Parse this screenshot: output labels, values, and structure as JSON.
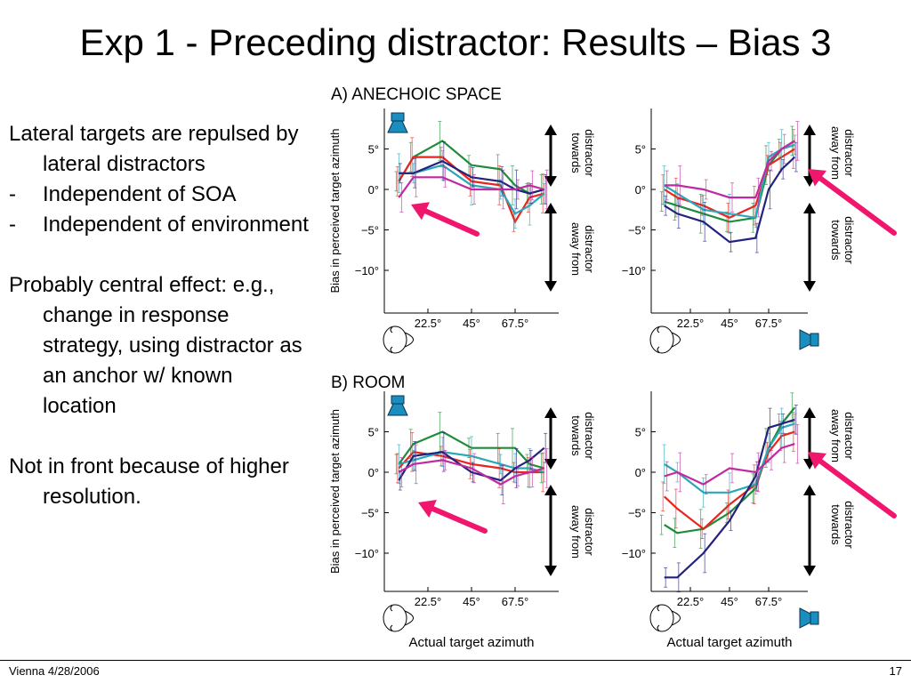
{
  "slide": {
    "title": "Exp 1 - Preceding distractor: Results – Bias 3",
    "footer_left": "Vienna 4/28/2006",
    "page_number": "17"
  },
  "bullets": {
    "b1": "Lateral targets are repulsed by lateral distractors",
    "b2_dash": "-",
    "b2": "Independent of SOA",
    "b3_dash": "-",
    "b3": "Independent of environment",
    "b4": "Probably central effect: e.g., change in response strategy, using distractor as an anchor w/ known location",
    "b5": "Not in front because of higher resolution."
  },
  "figure": {
    "panel_a_title": "A) ANECHOIC SPACE",
    "panel_b_title": "B) ROOM",
    "ylabel": "Bias in perceived target azimuth",
    "xlabel": "Actual target azimuth",
    "yticks": [
      "5°",
      "0°",
      "−5°",
      "−10°"
    ],
    "xticks": [
      "22.5°",
      "45°",
      "67.5°"
    ],
    "towards": [
      "towards",
      "distractor"
    ],
    "away": [
      "away from",
      "distractor"
    ],
    "colors": {
      "arrow": "#f0166e",
      "speaker": "#1a8fbf",
      "green": "#1e8c3a",
      "red": "#e8251f",
      "cyan": "#2aa7b8",
      "navy": "#23237e",
      "magenta": "#c02aa0"
    },
    "icons": [
      "speaker-icon",
      "head-icon",
      "double-arrow-icon",
      "highlight-arrow-icon"
    ]
  },
  "chart_data": [
    {
      "type": "line",
      "title": "A) ANECHOIC SPACE",
      "xlabel": "",
      "ylabel": "Bias in perceived target azimuth",
      "ylim": [
        -15,
        10
      ],
      "x_ticks": [
        22.5,
        45,
        67.5
      ],
      "series": [
        {
          "color": "#1e8c3a",
          "x": [
            7.5,
            15,
            30,
            45,
            60,
            67.5,
            75,
            82.5
          ],
          "y": [
            1,
            4,
            6,
            3,
            2.5,
            0.5,
            -0.5,
            0
          ]
        },
        {
          "color": "#e8251f",
          "x": [
            7.5,
            15,
            30,
            45,
            60,
            67.5,
            75,
            82.5
          ],
          "y": [
            1,
            4,
            4,
            1,
            0.5,
            -4,
            -1,
            -0.5
          ]
        },
        {
          "color": "#2aa7b8",
          "x": [
            7.5,
            15,
            30,
            45,
            60,
            67.5,
            75,
            82.5
          ],
          "y": [
            2,
            2,
            3,
            0.5,
            0,
            -3,
            -2,
            -0.5
          ]
        },
        {
          "color": "#23237e",
          "x": [
            7.5,
            15,
            30,
            45,
            60,
            67.5,
            75,
            82.5
          ],
          "y": [
            2,
            2,
            3.5,
            1.5,
            1,
            0,
            -0.5,
            0
          ]
        },
        {
          "color": "#c02aa0",
          "x": [
            7.5,
            15,
            30,
            45,
            60,
            67.5,
            75,
            82.5
          ],
          "y": [
            -1,
            1.5,
            1.5,
            0,
            0,
            0,
            0.5,
            0
          ]
        }
      ]
    },
    {
      "type": "line",
      "title": "",
      "xlabel": "",
      "ylabel": "",
      "ylim": [
        -15,
        10
      ],
      "x_ticks": [
        22.5,
        45,
        67.5
      ],
      "series": [
        {
          "color": "#1e8c3a",
          "x": [
            7.5,
            15,
            30,
            45,
            60,
            67.5,
            75,
            82.5
          ],
          "y": [
            -1.5,
            -2,
            -3,
            -4,
            -3.5,
            3,
            5,
            6
          ]
        },
        {
          "color": "#e8251f",
          "x": [
            7.5,
            15,
            30,
            45,
            60,
            67.5,
            75,
            82.5
          ],
          "y": [
            0,
            -1,
            -2,
            -3.5,
            -2,
            3,
            4,
            5
          ]
        },
        {
          "color": "#2aa7b8",
          "x": [
            7.5,
            15,
            30,
            45,
            60,
            67.5,
            75,
            82.5
          ],
          "y": [
            0.5,
            -0.5,
            -2.5,
            -3,
            -3.5,
            4,
            5,
            5.5
          ]
        },
        {
          "color": "#23237e",
          "x": [
            7.5,
            15,
            30,
            45,
            60,
            67.5,
            75,
            82.5
          ],
          "y": [
            -2,
            -3,
            -4,
            -6.5,
            -6,
            0,
            2.5,
            4
          ]
        },
        {
          "color": "#c02aa0",
          "x": [
            7.5,
            15,
            30,
            45,
            60,
            67.5,
            75,
            82.5
          ],
          "y": [
            0.5,
            0.5,
            0,
            -1,
            -1,
            3.5,
            5,
            6
          ]
        }
      ]
    },
    {
      "type": "line",
      "title": "B) ROOM",
      "xlabel": "Actual target azimuth",
      "ylabel": "Bias in perceived target azimuth",
      "ylim": [
        -15,
        10
      ],
      "x_ticks": [
        22.5,
        45,
        67.5
      ],
      "series": [
        {
          "color": "#1e8c3a",
          "x": [
            7.5,
            15,
            30,
            45,
            60,
            67.5,
            75,
            82.5
          ],
          "y": [
            1,
            3.5,
            5,
            3,
            3,
            3,
            1,
            0.5
          ]
        },
        {
          "color": "#e8251f",
          "x": [
            7.5,
            15,
            30,
            45,
            60,
            67.5,
            75,
            82.5
          ],
          "y": [
            0.5,
            2.5,
            2,
            1,
            0.5,
            0,
            0,
            0
          ]
        },
        {
          "color": "#2aa7b8",
          "x": [
            7.5,
            15,
            30,
            45,
            60,
            67.5,
            75,
            82.5
          ],
          "y": [
            1,
            1.5,
            2.5,
            2,
            1,
            0.5,
            0.5,
            0
          ]
        },
        {
          "color": "#23237e",
          "x": [
            7.5,
            15,
            30,
            45,
            60,
            67.5,
            75,
            82.5
          ],
          "y": [
            -1,
            2,
            2.5,
            0,
            -1,
            0.5,
            1.5,
            3
          ]
        },
        {
          "color": "#c02aa0",
          "x": [
            7.5,
            15,
            30,
            45,
            60,
            67.5,
            75,
            82.5
          ],
          "y": [
            0,
            1,
            1.5,
            0.5,
            -1.5,
            -0.5,
            0,
            0.5
          ]
        }
      ]
    },
    {
      "type": "line",
      "title": "",
      "xlabel": "Actual target azimuth",
      "ylabel": "",
      "ylim": [
        -15,
        10
      ],
      "x_ticks": [
        22.5,
        45,
        67.5
      ],
      "series": [
        {
          "color": "#1e8c3a",
          "x": [
            7.5,
            15,
            30,
            45,
            60,
            67.5,
            75,
            82.5
          ],
          "y": [
            -6.5,
            -7.5,
            -7,
            -5,
            -2,
            3,
            6,
            8
          ]
        },
        {
          "color": "#e8251f",
          "x": [
            7.5,
            15,
            30,
            45,
            60,
            67.5,
            75,
            82.5
          ],
          "y": [
            -3,
            -4.5,
            -7,
            -4,
            -1.5,
            2.5,
            4.5,
            5
          ]
        },
        {
          "color": "#2aa7b8",
          "x": [
            7.5,
            15,
            30,
            45,
            60,
            67.5,
            75,
            82.5
          ],
          "y": [
            1,
            0,
            -2.5,
            -2.5,
            -1.5,
            3,
            5.5,
            6
          ]
        },
        {
          "color": "#23237e",
          "x": [
            7.5,
            15,
            30,
            45,
            60,
            67.5,
            75,
            82.5
          ],
          "y": [
            -13,
            -13,
            -10,
            -6,
            -0.5,
            5.5,
            6,
            6.5
          ]
        },
        {
          "color": "#c02aa0",
          "x": [
            7.5,
            15,
            30,
            45,
            60,
            67.5,
            75,
            82.5
          ],
          "y": [
            -0.5,
            0,
            -1.5,
            0.5,
            0,
            1.5,
            3,
            3.5
          ]
        }
      ]
    }
  ]
}
